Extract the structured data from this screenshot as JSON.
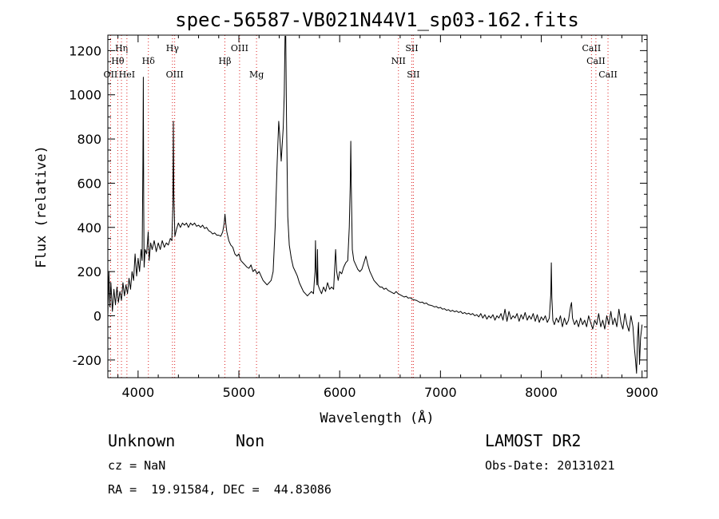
{
  "chart_data": {
    "type": "line",
    "title": "spec-56587-VB021N44V1_sp03-162.fits",
    "xlabel": "Wavelength (Å)",
    "ylabel": "Flux (relative)",
    "xlim": [
      3700,
      9050
    ],
    "ylim": [
      -280,
      1270
    ],
    "xticks": [
      4000,
      5000,
      6000,
      7000,
      8000,
      9000
    ],
    "yticks": [
      -200,
      0,
      200,
      400,
      600,
      800,
      1000,
      1200
    ],
    "x_minor_step": 200,
    "y_minor_step": 50,
    "grid": false,
    "series": [
      {
        "line_color": "#000000",
        "points": [
          [
            3700,
            0
          ],
          [
            3710,
            200
          ],
          [
            3720,
            40
          ],
          [
            3730,
            150
          ],
          [
            3745,
            20
          ],
          [
            3760,
            120
          ],
          [
            3775,
            50
          ],
          [
            3790,
            130
          ],
          [
            3805,
            60
          ],
          [
            3820,
            110
          ],
          [
            3835,
            70
          ],
          [
            3850,
            150
          ],
          [
            3865,
            90
          ],
          [
            3880,
            140
          ],
          [
            3895,
            100
          ],
          [
            3910,
            170
          ],
          [
            3925,
            120
          ],
          [
            3940,
            200
          ],
          [
            3955,
            160
          ],
          [
            3970,
            280
          ],
          [
            3985,
            180
          ],
          [
            4000,
            260
          ],
          [
            4015,
            200
          ],
          [
            4030,
            300
          ],
          [
            4040,
            250
          ],
          [
            4048,
            700
          ],
          [
            4052,
            1080
          ],
          [
            4056,
            500
          ],
          [
            4060,
            220
          ],
          [
            4070,
            300
          ],
          [
            4085,
            280
          ],
          [
            4100,
            380
          ],
          [
            4110,
            250
          ],
          [
            4125,
            330
          ],
          [
            4140,
            300
          ],
          [
            4160,
            340
          ],
          [
            4180,
            290
          ],
          [
            4200,
            330
          ],
          [
            4220,
            300
          ],
          [
            4240,
            340
          ],
          [
            4260,
            310
          ],
          [
            4280,
            330
          ],
          [
            4300,
            320
          ],
          [
            4320,
            350
          ],
          [
            4335,
            340
          ],
          [
            4345,
            500
          ],
          [
            4350,
            880
          ],
          [
            4355,
            550
          ],
          [
            4365,
            360
          ],
          [
            4380,
            390
          ],
          [
            4400,
            420
          ],
          [
            4420,
            400
          ],
          [
            4440,
            420
          ],
          [
            4460,
            410
          ],
          [
            4480,
            420
          ],
          [
            4500,
            400
          ],
          [
            4520,
            420
          ],
          [
            4540,
            410
          ],
          [
            4560,
            420
          ],
          [
            4580,
            405
          ],
          [
            4600,
            410
          ],
          [
            4620,
            400
          ],
          [
            4640,
            410
          ],
          [
            4660,
            395
          ],
          [
            4680,
            400
          ],
          [
            4700,
            385
          ],
          [
            4720,
            380
          ],
          [
            4740,
            370
          ],
          [
            4760,
            375
          ],
          [
            4780,
            365
          ],
          [
            4800,
            365
          ],
          [
            4820,
            360
          ],
          [
            4840,
            380
          ],
          [
            4855,
            420
          ],
          [
            4862,
            460
          ],
          [
            4870,
            420
          ],
          [
            4880,
            380
          ],
          [
            4900,
            340
          ],
          [
            4920,
            320
          ],
          [
            4940,
            310
          ],
          [
            4960,
            280
          ],
          [
            4980,
            270
          ],
          [
            5000,
            280
          ],
          [
            5020,
            250
          ],
          [
            5040,
            240
          ],
          [
            5060,
            230
          ],
          [
            5080,
            220
          ],
          [
            5100,
            215
          ],
          [
            5120,
            230
          ],
          [
            5140,
            200
          ],
          [
            5160,
            210
          ],
          [
            5180,
            190
          ],
          [
            5200,
            200
          ],
          [
            5220,
            180
          ],
          [
            5240,
            160
          ],
          [
            5260,
            150
          ],
          [
            5280,
            140
          ],
          [
            5300,
            150
          ],
          [
            5320,
            160
          ],
          [
            5340,
            200
          ],
          [
            5360,
            400
          ],
          [
            5380,
            700
          ],
          [
            5395,
            880
          ],
          [
            5405,
            820
          ],
          [
            5420,
            700
          ],
          [
            5440,
            850
          ],
          [
            5450,
            1000
          ],
          [
            5458,
            1265
          ],
          [
            5465,
            1265
          ],
          [
            5472,
            900
          ],
          [
            5485,
            450
          ],
          [
            5500,
            320
          ],
          [
            5520,
            260
          ],
          [
            5540,
            220
          ],
          [
            5560,
            200
          ],
          [
            5580,
            180
          ],
          [
            5600,
            150
          ],
          [
            5620,
            130
          ],
          [
            5640,
            110
          ],
          [
            5660,
            100
          ],
          [
            5680,
            90
          ],
          [
            5700,
            100
          ],
          [
            5720,
            110
          ],
          [
            5740,
            100
          ],
          [
            5755,
            200
          ],
          [
            5760,
            340
          ],
          [
            5765,
            220
          ],
          [
            5775,
            140
          ],
          [
            5780,
            300
          ],
          [
            5785,
            140
          ],
          [
            5800,
            120
          ],
          [
            5820,
            100
          ],
          [
            5840,
            130
          ],
          [
            5860,
            110
          ],
          [
            5880,
            150
          ],
          [
            5900,
            120
          ],
          [
            5920,
            130
          ],
          [
            5940,
            120
          ],
          [
            5960,
            300
          ],
          [
            5970,
            200
          ],
          [
            5985,
            160
          ],
          [
            6000,
            200
          ],
          [
            6020,
            190
          ],
          [
            6040,
            220
          ],
          [
            6060,
            240
          ],
          [
            6080,
            250
          ],
          [
            6095,
            400
          ],
          [
            6105,
            590
          ],
          [
            6110,
            790
          ],
          [
            6115,
            590
          ],
          [
            6125,
            300
          ],
          [
            6140,
            250
          ],
          [
            6160,
            230
          ],
          [
            6180,
            210
          ],
          [
            6200,
            200
          ],
          [
            6220,
            210
          ],
          [
            6240,
            240
          ],
          [
            6260,
            270
          ],
          [
            6280,
            230
          ],
          [
            6300,
            200
          ],
          [
            6320,
            180
          ],
          [
            6340,
            160
          ],
          [
            6360,
            150
          ],
          [
            6380,
            140
          ],
          [
            6400,
            130
          ],
          [
            6420,
            130
          ],
          [
            6440,
            120
          ],
          [
            6460,
            125
          ],
          [
            6480,
            115
          ],
          [
            6500,
            110
          ],
          [
            6520,
            105
          ],
          [
            6540,
            100
          ],
          [
            6560,
            110
          ],
          [
            6580,
            100
          ],
          [
            6600,
            95
          ],
          [
            6620,
            90
          ],
          [
            6640,
            85
          ],
          [
            6660,
            88
          ],
          [
            6680,
            80
          ],
          [
            6700,
            82
          ],
          [
            6720,
            75
          ],
          [
            6740,
            72
          ],
          [
            6760,
            70
          ],
          [
            6780,
            65
          ],
          [
            6800,
            60
          ],
          [
            6820,
            62
          ],
          [
            6840,
            55
          ],
          [
            6860,
            58
          ],
          [
            6880,
            50
          ],
          [
            6900,
            48
          ],
          [
            6920,
            45
          ],
          [
            6940,
            40
          ],
          [
            6960,
            42
          ],
          [
            6980,
            35
          ],
          [
            7000,
            38
          ],
          [
            7020,
            30
          ],
          [
            7040,
            32
          ],
          [
            7060,
            25
          ],
          [
            7080,
            28
          ],
          [
            7100,
            20
          ],
          [
            7120,
            25
          ],
          [
            7140,
            18
          ],
          [
            7160,
            22
          ],
          [
            7180,
            15
          ],
          [
            7200,
            20
          ],
          [
            7220,
            10
          ],
          [
            7240,
            15
          ],
          [
            7260,
            8
          ],
          [
            7280,
            12
          ],
          [
            7300,
            5
          ],
          [
            7320,
            10
          ],
          [
            7340,
            0
          ],
          [
            7360,
            5
          ],
          [
            7380,
            -5
          ],
          [
            7400,
            10
          ],
          [
            7420,
            -10
          ],
          [
            7440,
            5
          ],
          [
            7460,
            -15
          ],
          [
            7480,
            0
          ],
          [
            7500,
            -10
          ],
          [
            7520,
            5
          ],
          [
            7540,
            -20
          ],
          [
            7560,
            0
          ],
          [
            7580,
            -10
          ],
          [
            7600,
            10
          ],
          [
            7620,
            -20
          ],
          [
            7640,
            30
          ],
          [
            7660,
            -25
          ],
          [
            7680,
            20
          ],
          [
            7700,
            -15
          ],
          [
            7720,
            0
          ],
          [
            7740,
            -10
          ],
          [
            7760,
            10
          ],
          [
            7780,
            -25
          ],
          [
            7800,
            5
          ],
          [
            7820,
            -15
          ],
          [
            7840,
            15
          ],
          [
            7860,
            -20
          ],
          [
            7880,
            0
          ],
          [
            7900,
            -15
          ],
          [
            7920,
            10
          ],
          [
            7940,
            -25
          ],
          [
            7960,
            5
          ],
          [
            7980,
            -30
          ],
          [
            8000,
            -5
          ],
          [
            8020,
            -20
          ],
          [
            8040,
            0
          ],
          [
            8060,
            -30
          ],
          [
            8080,
            -10
          ],
          [
            8095,
            100
          ],
          [
            8100,
            240
          ],
          [
            8105,
            80
          ],
          [
            8115,
            -20
          ],
          [
            8130,
            -40
          ],
          [
            8150,
            -10
          ],
          [
            8170,
            -30
          ],
          [
            8190,
            0
          ],
          [
            8210,
            -50
          ],
          [
            8230,
            -10
          ],
          [
            8250,
            -40
          ],
          [
            8270,
            -20
          ],
          [
            8290,
            40
          ],
          [
            8300,
            60
          ],
          [
            8310,
            -10
          ],
          [
            8330,
            -40
          ],
          [
            8350,
            -20
          ],
          [
            8370,
            -50
          ],
          [
            8390,
            -10
          ],
          [
            8410,
            -40
          ],
          [
            8430,
            -20
          ],
          [
            8450,
            -50
          ],
          [
            8470,
            0
          ],
          [
            8490,
            -30
          ],
          [
            8510,
            -60
          ],
          [
            8530,
            -20
          ],
          [
            8550,
            -40
          ],
          [
            8570,
            10
          ],
          [
            8590,
            -50
          ],
          [
            8610,
            -20
          ],
          [
            8630,
            -60
          ],
          [
            8650,
            0
          ],
          [
            8670,
            -40
          ],
          [
            8690,
            20
          ],
          [
            8710,
            -40
          ],
          [
            8730,
            -10
          ],
          [
            8750,
            -50
          ],
          [
            8770,
            30
          ],
          [
            8790,
            -30
          ],
          [
            8810,
            -60
          ],
          [
            8830,
            10
          ],
          [
            8850,
            -40
          ],
          [
            8870,
            -70
          ],
          [
            8890,
            0
          ],
          [
            8910,
            -50
          ],
          [
            8925,
            -150
          ],
          [
            8935,
            -200
          ],
          [
            8945,
            -260
          ],
          [
            8955,
            -100
          ],
          [
            8965,
            -30
          ],
          [
            8975,
            -220
          ],
          [
            8985,
            -100
          ],
          [
            8995,
            -60
          ],
          [
            9000,
            -40
          ]
        ]
      }
    ],
    "line_markers": [
      {
        "label": "OII",
        "x": 3727,
        "row": 3
      },
      {
        "label": "Hη",
        "x": 3835,
        "row": 1
      },
      {
        "label": "Hθ",
        "x": 3798,
        "row": 2
      },
      {
        "label": "HeI",
        "x": 3889,
        "row": 3
      },
      {
        "label": "Hδ",
        "x": 4102,
        "row": 2
      },
      {
        "label": "Hγ",
        "x": 4341,
        "row": 1
      },
      {
        "label": "OIII",
        "x": 4363,
        "row": 3
      },
      {
        "label": "Hβ",
        "x": 4861,
        "row": 2
      },
      {
        "label": "OIII",
        "x": 5007,
        "row": 1
      },
      {
        "label": "Mg",
        "x": 5175,
        "row": 3
      },
      {
        "label": "NII",
        "x": 6583,
        "row": 2
      },
      {
        "label": "SII",
        "x": 6716,
        "row": 1
      },
      {
        "label": "SII",
        "x": 6731,
        "row": 3
      },
      {
        "label": "CaII",
        "x": 8498,
        "row": 1
      },
      {
        "label": "CaII",
        "x": 8542,
        "row": 2
      },
      {
        "label": "CaII",
        "x": 8662,
        "row": 3
      }
    ],
    "marker_color": "#dd2222"
  },
  "footer": {
    "class_text": "Unknown",
    "subclass_text": "Non",
    "survey": "LAMOST DR2",
    "cz": "cz = NaN",
    "obs_date": "Obs-Date: 20131021",
    "coords": "RA =  19.91584, DEC =  44.83086"
  }
}
